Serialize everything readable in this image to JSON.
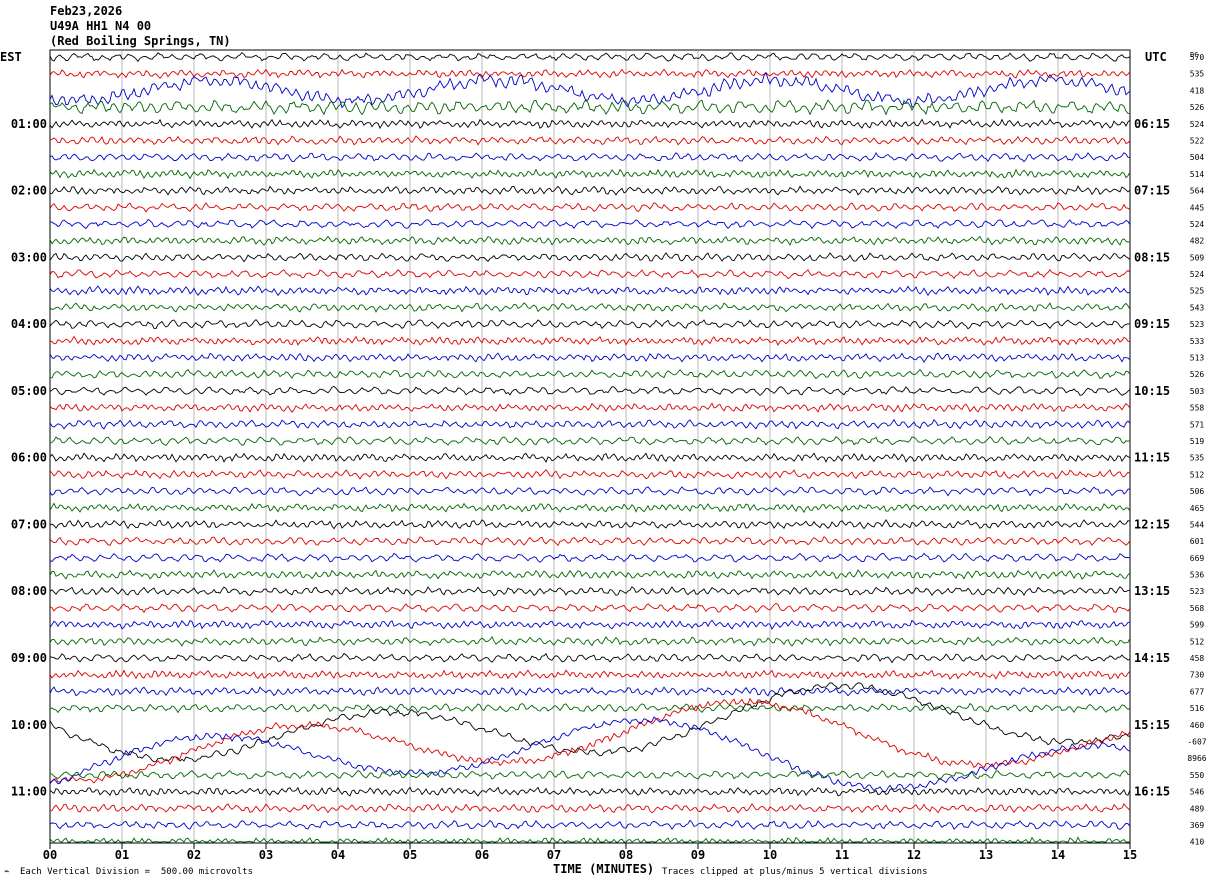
{
  "header": {
    "date": "Feb23,2026",
    "station": "U49A HH1 N4 00",
    "location": "(Red Boiling Springs, TN)"
  },
  "left_timezone": "EST",
  "right_timezone": "UTC",
  "dc_header": "DC",
  "footer": {
    "left_note": "Each Vertical Division =  500.00 microvolts",
    "xlabel": "TIME (MINUTES)",
    "right_note": "Traces clipped at plus/minus 5 vertical divisions"
  },
  "colors": {
    "black": "#000000",
    "red": "#dd0000",
    "blue": "#0000cc",
    "green": "#006600",
    "grid": "#9a9a9a"
  },
  "chart_data": {
    "type": "line",
    "title": "",
    "xlabel": "TIME (MINUTES)",
    "xlim": [
      0,
      15
    ],
    "xticks": [
      "00",
      "01",
      "02",
      "03",
      "04",
      "05",
      "06",
      "07",
      "08",
      "09",
      "10",
      "11",
      "12",
      "13",
      "14",
      "15"
    ],
    "trace_color_cycle": [
      "black",
      "red",
      "blue",
      "green"
    ],
    "left_hour_labels": [
      "01:00",
      "02:00",
      "03:00",
      "04:00",
      "05:00",
      "06:00",
      "07:00",
      "08:00",
      "09:00",
      "10:00",
      "11:00"
    ],
    "right_hour_labels": [
      "06:15",
      "07:15",
      "08:15",
      "09:15",
      "10:15",
      "11:15",
      "12:15",
      "13:15",
      "14:15",
      "15:15",
      "16:15"
    ],
    "dc_offsets": [
      "570",
      "535",
      "418",
      "526",
      "524",
      "522",
      "504",
      "514",
      "564",
      "445",
      "524",
      "482",
      "509",
      "524",
      "525",
      "543",
      "523",
      "533",
      "513",
      "526",
      "503",
      "558",
      "571",
      "519",
      "535",
      "512",
      "506",
      "465",
      "544",
      "601",
      "669",
      "536",
      "523",
      "568",
      "599",
      "512",
      "458",
      "730",
      "677",
      "516",
      "460",
      "-607",
      "8966",
      "550",
      "546",
      "489",
      "369",
      "410"
    ],
    "vertical_division_microvolts": 500.0,
    "clip_divisions": 5
  }
}
